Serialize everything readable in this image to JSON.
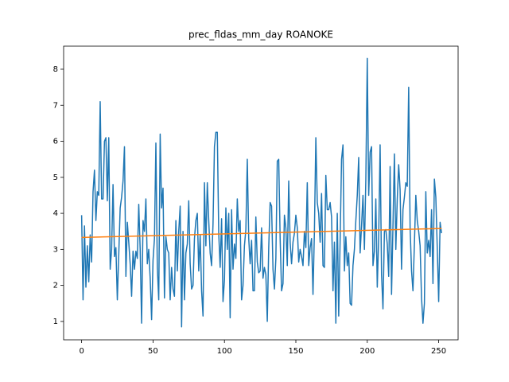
{
  "chart_data": {
    "type": "line",
    "title": "prec_fldas_mm_day ROANOKE",
    "x": [
      0,
      1,
      2,
      3,
      4,
      5,
      6,
      7,
      8,
      9,
      10,
      11,
      12,
      13,
      14,
      15,
      16,
      17,
      18,
      19,
      20,
      21,
      22,
      23,
      24,
      25,
      26,
      27,
      28,
      29,
      30,
      31,
      32,
      33,
      34,
      35,
      36,
      37,
      38,
      39,
      40,
      41,
      42,
      43,
      44,
      45,
      46,
      47,
      48,
      49,
      50,
      51,
      52,
      53,
      54,
      55,
      56,
      57,
      58,
      59,
      60,
      61,
      62,
      63,
      64,
      65,
      66,
      67,
      68,
      69,
      70,
      71,
      72,
      73,
      74,
      75,
      76,
      77,
      78,
      79,
      80,
      81,
      82,
      83,
      84,
      85,
      86,
      87,
      88,
      89,
      90,
      91,
      92,
      93,
      94,
      95,
      96,
      97,
      98,
      99,
      100,
      101,
      102,
      103,
      104,
      105,
      106,
      107,
      108,
      109,
      110,
      111,
      112,
      113,
      114,
      115,
      116,
      117,
      118,
      119,
      120,
      121,
      122,
      123,
      124,
      125,
      126,
      127,
      128,
      129,
      130,
      131,
      132,
      133,
      134,
      135,
      136,
      137,
      138,
      139,
      140,
      141,
      142,
      143,
      144,
      145,
      146,
      147,
      148,
      149,
      150,
      151,
      152,
      153,
      154,
      155,
      156,
      157,
      158,
      159,
      160,
      161,
      162,
      163,
      164,
      165,
      166,
      167,
      168,
      169,
      170,
      171,
      172,
      173,
      174,
      175,
      176,
      177,
      178,
      179,
      180,
      181,
      182,
      183,
      184,
      185,
      186,
      187,
      188,
      189,
      190,
      191,
      192,
      193,
      194,
      195,
      196,
      197,
      198,
      199,
      200,
      201,
      202,
      203,
      204,
      205,
      206,
      207,
      208,
      209,
      210,
      211,
      212,
      213,
      214,
      215,
      216,
      217,
      218,
      219,
      220,
      221,
      222,
      223,
      224,
      225,
      226,
      227,
      228,
      229,
      230,
      231,
      232,
      233,
      234,
      235,
      236,
      237,
      238,
      239,
      240,
      241,
      242,
      243,
      244,
      245,
      246,
      247,
      248,
      249,
      250,
      251,
      252
    ],
    "series": [
      {
        "color": "#1f77b4",
        "values": [
          3.95,
          1.6,
          3.65,
          1.95,
          3.1,
          2.1,
          3.4,
          2.65,
          4.6,
          5.2,
          3.8,
          4.6,
          4.5,
          7.1,
          4.4,
          4.4,
          6.0,
          6.1,
          4.35,
          6.1,
          2.45,
          3.0,
          4.8,
          2.8,
          3.05,
          1.6,
          2.85,
          4.15,
          4.45,
          4.9,
          5.85,
          2.25,
          3.75,
          3.2,
          2.6,
          1.7,
          2.95,
          2.45,
          2.95,
          2.75,
          4.25,
          3.0,
          0.95,
          3.8,
          3.5,
          4.4,
          2.6,
          3.0,
          2.2,
          1.05,
          2.7,
          3.3,
          5.95,
          2.5,
          1.6,
          6.2,
          4.15,
          4.7,
          1.65,
          3.35,
          3.0,
          2.9,
          1.6,
          2.5,
          1.9,
          1.7,
          3.8,
          2.4,
          3.5,
          4.2,
          0.85,
          3.5,
          1.6,
          2.9,
          3.15,
          4.35,
          2.6,
          1.9,
          2.0,
          3.3,
          3.8,
          4.0,
          2.4,
          3.4,
          1.85,
          1.15,
          4.85,
          3.1,
          4.85,
          3.8,
          2.9,
          2.55,
          3.7,
          5.85,
          6.25,
          6.25,
          3.45,
          2.5,
          3.85,
          1.55,
          2.15,
          4.15,
          3.0,
          4.0,
          1.1,
          4.1,
          2.45,
          3.15,
          2.75,
          4.4,
          3.5,
          3.8,
          1.6,
          2.0,
          3.1,
          3.55,
          5.5,
          3.3,
          2.6,
          3.25,
          1.85,
          1.85,
          3.9,
          2.65,
          2.35,
          2.4,
          3.6,
          2.2,
          2.5,
          2.3,
          1.0,
          3.05,
          4.3,
          4.2,
          2.45,
          1.9,
          2.75,
          5.45,
          5.5,
          3.3,
          1.85,
          2.05,
          3.95,
          3.6,
          2.55,
          4.9,
          3.2,
          2.6,
          3.2,
          3.45,
          3.95,
          3.6,
          2.65,
          3.0,
          2.8,
          2.55,
          3.5,
          3.05,
          4.85,
          2.55,
          3.05,
          3.3,
          1.75,
          3.5,
          6.1,
          4.3,
          4.0,
          3.2,
          4.55,
          2.55,
          2.5,
          5.05,
          4.1,
          4.1,
          4.3,
          3.9,
          1.85,
          3.2,
          0.95,
          4.0,
          1.15,
          3.25,
          5.5,
          5.9,
          2.4,
          3.35,
          2.55,
          2.9,
          1.5,
          1.45,
          2.55,
          3.0,
          3.8,
          4.5,
          5.55,
          2.9,
          3.65,
          4.5,
          3.0,
          4.95,
          8.3,
          4.5,
          5.7,
          5.85,
          2.55,
          2.95,
          4.4,
          1.95,
          3.35,
          5.9,
          2.3,
          1.35,
          3.5,
          3.55,
          3.15,
          2.25,
          5.3,
          1.75,
          3.65,
          5.65,
          3.0,
          4.4,
          5.35,
          4.65,
          2.45,
          4.1,
          4.45,
          4.85,
          4.75,
          7.5,
          3.6,
          2.4,
          1.85,
          3.15,
          4.5,
          3.8,
          3.5,
          3.1,
          1.65,
          0.95,
          1.5,
          4.6,
          2.9,
          3.25,
          2.8,
          4.1,
          2.05,
          4.95,
          4.45,
          3.05,
          1.55,
          3.75,
          3.45
        ]
      },
      {
        "color": "#ff7f0e",
        "x": [
          0,
          252
        ],
        "values": [
          3.33,
          3.58
        ]
      }
    ],
    "xlim": [
      -12.6,
      263.6
    ],
    "ylim": [
      0.49,
      8.64
    ],
    "xticks": [
      0,
      50,
      100,
      150,
      200,
      250
    ],
    "yticks": [
      1,
      2,
      3,
      4,
      5,
      6,
      7,
      8
    ]
  }
}
